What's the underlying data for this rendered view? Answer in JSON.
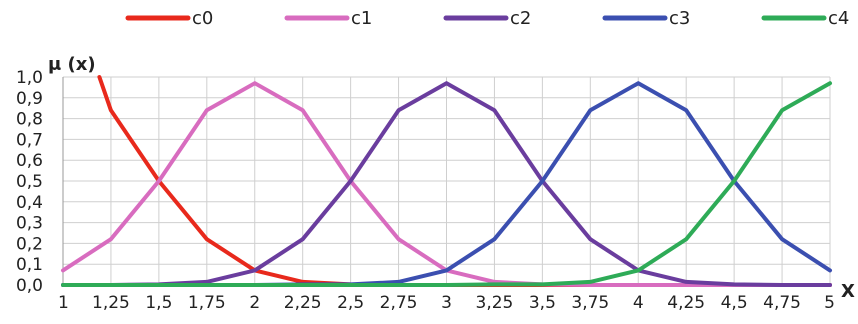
{
  "chart_data": {
    "type": "line",
    "title": "",
    "ylabel": "μ (x)",
    "xlabel": "X",
    "x": [
      1,
      1.25,
      1.5,
      1.75,
      2,
      2.25,
      2.5,
      2.75,
      3,
      3.25,
      3.5,
      3.75,
      4,
      4.25,
      4.5,
      4.75,
      5
    ],
    "x_tick_labels": [
      "1",
      "1,25",
      "1,5",
      "1,75",
      "2",
      "2,25",
      "2,5",
      "2,75",
      "3",
      "3,25",
      "3,5",
      "3,75",
      "4",
      "4,25",
      "4,5",
      "4,75",
      "5"
    ],
    "y_tick_labels": [
      "0,0",
      "0,1",
      "0,2",
      "0,3",
      "0,4",
      "0,5",
      "0,6",
      "0,7",
      "0,8",
      "0,9",
      "1,0"
    ],
    "xlim": [
      1,
      5
    ],
    "ylim": [
      0,
      1
    ],
    "grid": true,
    "legend_position": "top",
    "series": [
      {
        "name": "c0",
        "color": "#e8291c",
        "x": [
          1.19,
          1.25,
          1.5,
          1.75,
          2,
          2.25,
          2.5,
          2.75,
          3,
          3.25,
          3.5,
          3.75,
          4,
          4.25,
          4.5,
          4.75,
          5
        ],
        "values": [
          1.0,
          0.84,
          0.5,
          0.22,
          0.07,
          0.015,
          0.003,
          0,
          0,
          0,
          0,
          0,
          0,
          0,
          0,
          0,
          0
        ]
      },
      {
        "name": "c1",
        "color": "#d86cbf",
        "x": [
          1,
          1.25,
          1.5,
          1.75,
          2,
          2.25,
          2.5,
          2.75,
          3,
          3.25,
          3.5,
          3.75,
          4,
          4.25,
          4.5,
          4.75,
          5
        ],
        "values": [
          0.07,
          0.22,
          0.5,
          0.84,
          0.97,
          0.84,
          0.5,
          0.22,
          0.07,
          0.015,
          0.003,
          0,
          0,
          0,
          0,
          0,
          0
        ]
      },
      {
        "name": "c2",
        "color": "#6a3d9e",
        "x": [
          1,
          1.25,
          1.5,
          1.75,
          2,
          2.25,
          2.5,
          2.75,
          3,
          3.25,
          3.5,
          3.75,
          4,
          4.25,
          4.5,
          4.75,
          5
        ],
        "values": [
          0,
          0,
          0.003,
          0.015,
          0.07,
          0.22,
          0.5,
          0.84,
          0.97,
          0.84,
          0.5,
          0.22,
          0.07,
          0.015,
          0.003,
          0,
          0
        ]
      },
      {
        "name": "c3",
        "color": "#3b4fb0",
        "x": [
          1,
          1.25,
          1.5,
          1.75,
          2,
          2.25,
          2.5,
          2.75,
          3,
          3.25,
          3.5,
          3.75,
          4,
          4.25,
          4.5,
          4.75,
          5
        ],
        "values": [
          0,
          0,
          0,
          0,
          0,
          0.003,
          0.003,
          0.015,
          0.07,
          0.22,
          0.5,
          0.84,
          0.97,
          0.84,
          0.5,
          0.22,
          0.07
        ]
      },
      {
        "name": "c4",
        "color": "#2eab57",
        "x": [
          1,
          1.25,
          1.5,
          1.75,
          2,
          2.25,
          2.5,
          2.75,
          3,
          3.25,
          3.5,
          3.75,
          4,
          4.25,
          4.5,
          4.75,
          5
        ],
        "values": [
          0,
          0,
          0,
          0,
          0,
          0,
          0,
          0,
          0,
          0.003,
          0.003,
          0.015,
          0.07,
          0.22,
          0.5,
          0.84,
          0.97
        ]
      }
    ]
  }
}
